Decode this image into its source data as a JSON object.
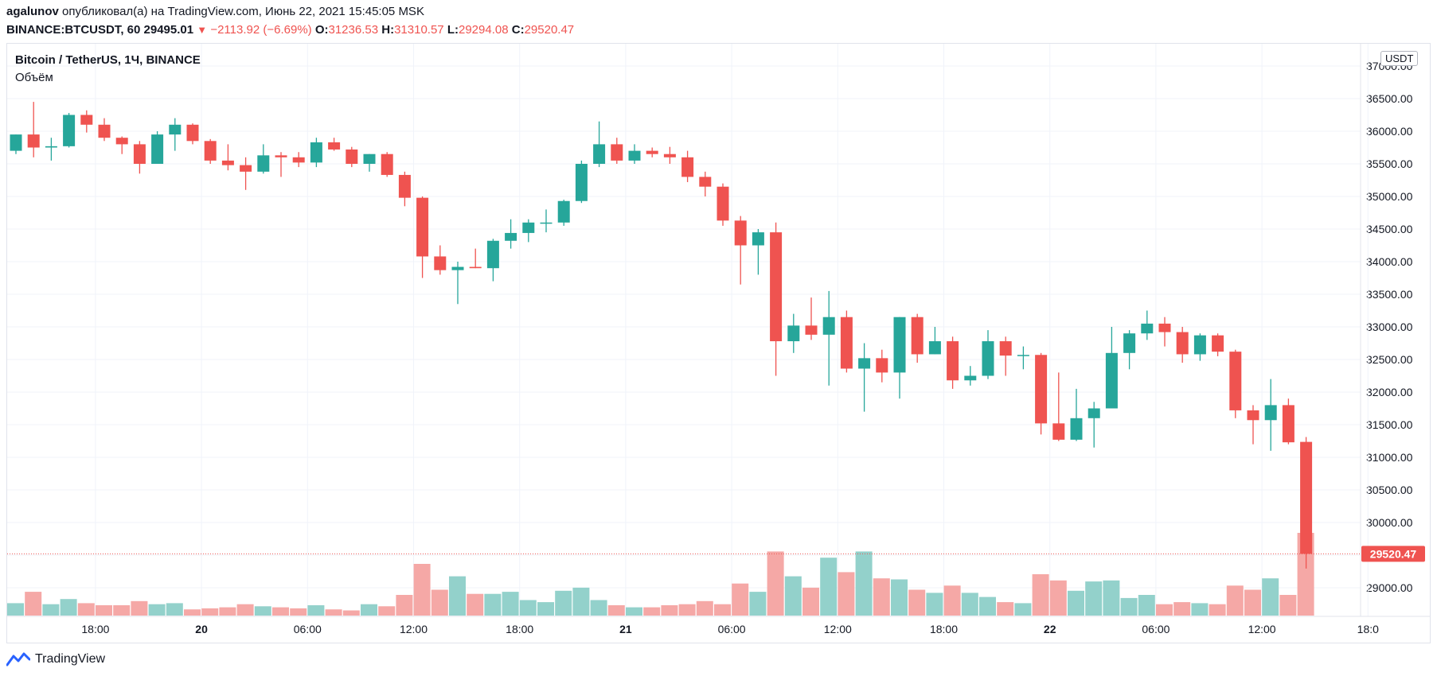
{
  "header": {
    "author": "agalunov",
    "published_text": "опубликовал(а) на TradingView.com, Июнь 22, 2021 15:45:05 MSK",
    "symbol": "BINANCE:BTCUSDT, 60",
    "price": "29495.01",
    "change": "−2113.92 (−6.69%)",
    "o_label": "O:",
    "o_value": "31236.53",
    "h_label": "H:",
    "h_value": "31310.57",
    "l_label": "L:",
    "l_value": "29294.08",
    "c_label": "C:",
    "c_value": "29520.47"
  },
  "legend": {
    "title": "Bitcoin / TetherUS, 1Ч, BINANCE",
    "volume_label": "Объём"
  },
  "currency_badge": "USDT",
  "footer": {
    "brand": "TradingView"
  },
  "colors": {
    "up": "#26a69a",
    "down": "#ef5350",
    "vol_up": "#93d1cb",
    "vol_down": "#f5a8a6",
    "grid": "#f0f3fa",
    "last_price_bg": "#ef5350"
  },
  "chart_data": {
    "type": "candlestick",
    "interval": "60",
    "y_ticks": [
      29000,
      29500,
      30000,
      30500,
      31000,
      31500,
      32000,
      32500,
      33000,
      33500,
      34000,
      34500,
      35000,
      35500,
      36000,
      36500,
      37000
    ],
    "y_tick_labels": [
      "29000.00",
      "",
      "30000.00",
      "30500.00",
      "31000.00",
      "31500.00",
      "32000.00",
      "32500.00",
      "33000.00",
      "33500.00",
      "34000.00",
      "34500.00",
      "35000.00",
      "35500.00",
      "36000.00",
      "36500.00",
      "37000.00"
    ],
    "ylim": [
      28550,
      37090
    ],
    "x_labels": [
      {
        "i": 4.5,
        "label": "18:00"
      },
      {
        "i": 10.5,
        "label": "20"
      },
      {
        "i": 16.5,
        "label": "06:00"
      },
      {
        "i": 22.5,
        "label": "12:00"
      },
      {
        "i": 28.5,
        "label": "18:00"
      },
      {
        "i": 34.5,
        "label": "21"
      },
      {
        "i": 40.5,
        "label": "06:00"
      },
      {
        "i": 46.5,
        "label": "12:00"
      },
      {
        "i": 52.5,
        "label": "18:00"
      },
      {
        "i": 58.5,
        "label": "22"
      },
      {
        "i": 64.5,
        "label": "06:00"
      },
      {
        "i": 70.5,
        "label": "12:00"
      },
      {
        "i": 76.5,
        "label": "18:0"
      }
    ],
    "last_price": 29520.47,
    "last_price_label": "29520.47",
    "candles": [
      {
        "o": 35700,
        "h": 35950,
        "l": 35650,
        "c": 35950,
        "v": 0.12
      },
      {
        "o": 35950,
        "h": 36450,
        "l": 35600,
        "c": 35750,
        "v": 0.23
      },
      {
        "o": 35750,
        "h": 35900,
        "l": 35550,
        "c": 35770,
        "v": 0.11
      },
      {
        "o": 35770,
        "h": 36280,
        "l": 35750,
        "c": 36250,
        "v": 0.16
      },
      {
        "o": 36250,
        "h": 36320,
        "l": 35980,
        "c": 36100,
        "v": 0.12
      },
      {
        "o": 36100,
        "h": 36200,
        "l": 35850,
        "c": 35900,
        "v": 0.1
      },
      {
        "o": 35900,
        "h": 35920,
        "l": 35650,
        "c": 35800,
        "v": 0.1
      },
      {
        "o": 35800,
        "h": 35850,
        "l": 35350,
        "c": 35500,
        "v": 0.14
      },
      {
        "o": 35500,
        "h": 36000,
        "l": 35500,
        "c": 35950,
        "v": 0.11
      },
      {
        "o": 35950,
        "h": 36200,
        "l": 35700,
        "c": 36100,
        "v": 0.12
      },
      {
        "o": 36100,
        "h": 36120,
        "l": 35800,
        "c": 35850,
        "v": 0.06
      },
      {
        "o": 35850,
        "h": 35880,
        "l": 35500,
        "c": 35550,
        "v": 0.07
      },
      {
        "o": 35550,
        "h": 35800,
        "l": 35400,
        "c": 35480,
        "v": 0.08
      },
      {
        "o": 35480,
        "h": 35600,
        "l": 35100,
        "c": 35380,
        "v": 0.11
      },
      {
        "o": 35380,
        "h": 35800,
        "l": 35350,
        "c": 35630,
        "v": 0.09
      },
      {
        "o": 35630,
        "h": 35680,
        "l": 35300,
        "c": 35600,
        "v": 0.08
      },
      {
        "o": 35600,
        "h": 35680,
        "l": 35450,
        "c": 35520,
        "v": 0.07
      },
      {
        "o": 35520,
        "h": 35900,
        "l": 35450,
        "c": 35830,
        "v": 0.1
      },
      {
        "o": 35830,
        "h": 35900,
        "l": 35700,
        "c": 35720,
        "v": 0.06
      },
      {
        "o": 35720,
        "h": 35760,
        "l": 35450,
        "c": 35500,
        "v": 0.05
      },
      {
        "o": 35500,
        "h": 35650,
        "l": 35380,
        "c": 35650,
        "v": 0.11
      },
      {
        "o": 35650,
        "h": 35680,
        "l": 35300,
        "c": 35330,
        "v": 0.09
      },
      {
        "o": 35330,
        "h": 35380,
        "l": 34850,
        "c": 34980,
        "v": 0.2
      },
      {
        "o": 34980,
        "h": 35000,
        "l": 33750,
        "c": 34080,
        "v": 0.5
      },
      {
        "o": 34080,
        "h": 34250,
        "l": 33800,
        "c": 33870,
        "v": 0.25
      },
      {
        "o": 33870,
        "h": 34000,
        "l": 33350,
        "c": 33920,
        "v": 0.38
      },
      {
        "o": 33920,
        "h": 34200,
        "l": 33900,
        "c": 33900,
        "v": 0.21
      },
      {
        "o": 33900,
        "h": 34350,
        "l": 33700,
        "c": 34320,
        "v": 0.21
      },
      {
        "o": 34320,
        "h": 34650,
        "l": 34200,
        "c": 34440,
        "v": 0.23
      },
      {
        "o": 34440,
        "h": 34650,
        "l": 34300,
        "c": 34600,
        "v": 0.15
      },
      {
        "o": 34600,
        "h": 34800,
        "l": 34450,
        "c": 34600,
        "v": 0.13
      },
      {
        "o": 34600,
        "h": 34950,
        "l": 34550,
        "c": 34930,
        "v": 0.24
      },
      {
        "o": 34930,
        "h": 35550,
        "l": 34900,
        "c": 35500,
        "v": 0.27
      },
      {
        "o": 35500,
        "h": 36150,
        "l": 35450,
        "c": 35800,
        "v": 0.15
      },
      {
        "o": 35800,
        "h": 35900,
        "l": 35500,
        "c": 35550,
        "v": 0.1
      },
      {
        "o": 35550,
        "h": 35800,
        "l": 35500,
        "c": 35700,
        "v": 0.08
      },
      {
        "o": 35700,
        "h": 35750,
        "l": 35600,
        "c": 35650,
        "v": 0.08
      },
      {
        "o": 35650,
        "h": 35760,
        "l": 35500,
        "c": 35600,
        "v": 0.1
      },
      {
        "o": 35600,
        "h": 35700,
        "l": 35220,
        "c": 35300,
        "v": 0.11
      },
      {
        "o": 35300,
        "h": 35380,
        "l": 35000,
        "c": 35150,
        "v": 0.14
      },
      {
        "o": 35150,
        "h": 35200,
        "l": 34550,
        "c": 34630,
        "v": 0.11
      },
      {
        "o": 34630,
        "h": 34700,
        "l": 33650,
        "c": 34250,
        "v": 0.31
      },
      {
        "o": 34250,
        "h": 34500,
        "l": 33800,
        "c": 34450,
        "v": 0.23
      },
      {
        "o": 34450,
        "h": 34600,
        "l": 32250,
        "c": 32780,
        "v": 0.62
      },
      {
        "o": 32780,
        "h": 33200,
        "l": 32600,
        "c": 33020,
        "v": 0.38
      },
      {
        "o": 33020,
        "h": 33450,
        "l": 32800,
        "c": 32880,
        "v": 0.27
      },
      {
        "o": 32880,
        "h": 33550,
        "l": 32100,
        "c": 33150,
        "v": 0.56
      },
      {
        "o": 33150,
        "h": 33250,
        "l": 32300,
        "c": 32360,
        "v": 0.42
      },
      {
        "o": 32360,
        "h": 32750,
        "l": 31700,
        "c": 32520,
        "v": 0.62
      },
      {
        "o": 32520,
        "h": 32650,
        "l": 32150,
        "c": 32300,
        "v": 0.36
      },
      {
        "o": 32300,
        "h": 33150,
        "l": 31900,
        "c": 33150,
        "v": 0.35
      },
      {
        "o": 33150,
        "h": 33200,
        "l": 32450,
        "c": 32580,
        "v": 0.25
      },
      {
        "o": 32580,
        "h": 33000,
        "l": 32580,
        "c": 32780,
        "v": 0.22
      },
      {
        "o": 32780,
        "h": 32850,
        "l": 32050,
        "c": 32180,
        "v": 0.29
      },
      {
        "o": 32180,
        "h": 32400,
        "l": 32100,
        "c": 32250,
        "v": 0.22
      },
      {
        "o": 32250,
        "h": 32950,
        "l": 32200,
        "c": 32780,
        "v": 0.18
      },
      {
        "o": 32780,
        "h": 32850,
        "l": 32250,
        "c": 32560,
        "v": 0.13
      },
      {
        "o": 32560,
        "h": 32700,
        "l": 32350,
        "c": 32570,
        "v": 0.12
      },
      {
        "o": 32570,
        "h": 32600,
        "l": 31350,
        "c": 31520,
        "v": 0.4
      },
      {
        "o": 31520,
        "h": 32300,
        "l": 31250,
        "c": 31270,
        "v": 0.34
      },
      {
        "o": 31270,
        "h": 32050,
        "l": 31250,
        "c": 31600,
        "v": 0.24
      },
      {
        "o": 31600,
        "h": 31850,
        "l": 31150,
        "c": 31750,
        "v": 0.33
      },
      {
        "o": 31750,
        "h": 33000,
        "l": 31750,
        "c": 32600,
        "v": 0.34
      },
      {
        "o": 32600,
        "h": 32950,
        "l": 32350,
        "c": 32900,
        "v": 0.17
      },
      {
        "o": 32900,
        "h": 33250,
        "l": 32800,
        "c": 33050,
        "v": 0.2
      },
      {
        "o": 33050,
        "h": 33150,
        "l": 32700,
        "c": 32920,
        "v": 0.11
      },
      {
        "o": 32920,
        "h": 33000,
        "l": 32450,
        "c": 32580,
        "v": 0.13
      },
      {
        "o": 32580,
        "h": 32900,
        "l": 32480,
        "c": 32870,
        "v": 0.12
      },
      {
        "o": 32870,
        "h": 32900,
        "l": 32550,
        "c": 32620,
        "v": 0.11
      },
      {
        "o": 32620,
        "h": 32650,
        "l": 31600,
        "c": 31720,
        "v": 0.29
      },
      {
        "o": 31720,
        "h": 31800,
        "l": 31200,
        "c": 31570,
        "v": 0.25
      },
      {
        "o": 31570,
        "h": 32200,
        "l": 31100,
        "c": 31800,
        "v": 0.36
      },
      {
        "o": 31800,
        "h": 31900,
        "l": 31200,
        "c": 31230,
        "v": 0.2
      },
      {
        "o": 31236.53,
        "h": 31310.57,
        "l": 29294.08,
        "c": 29520.47,
        "v": 0.8
      }
    ]
  }
}
